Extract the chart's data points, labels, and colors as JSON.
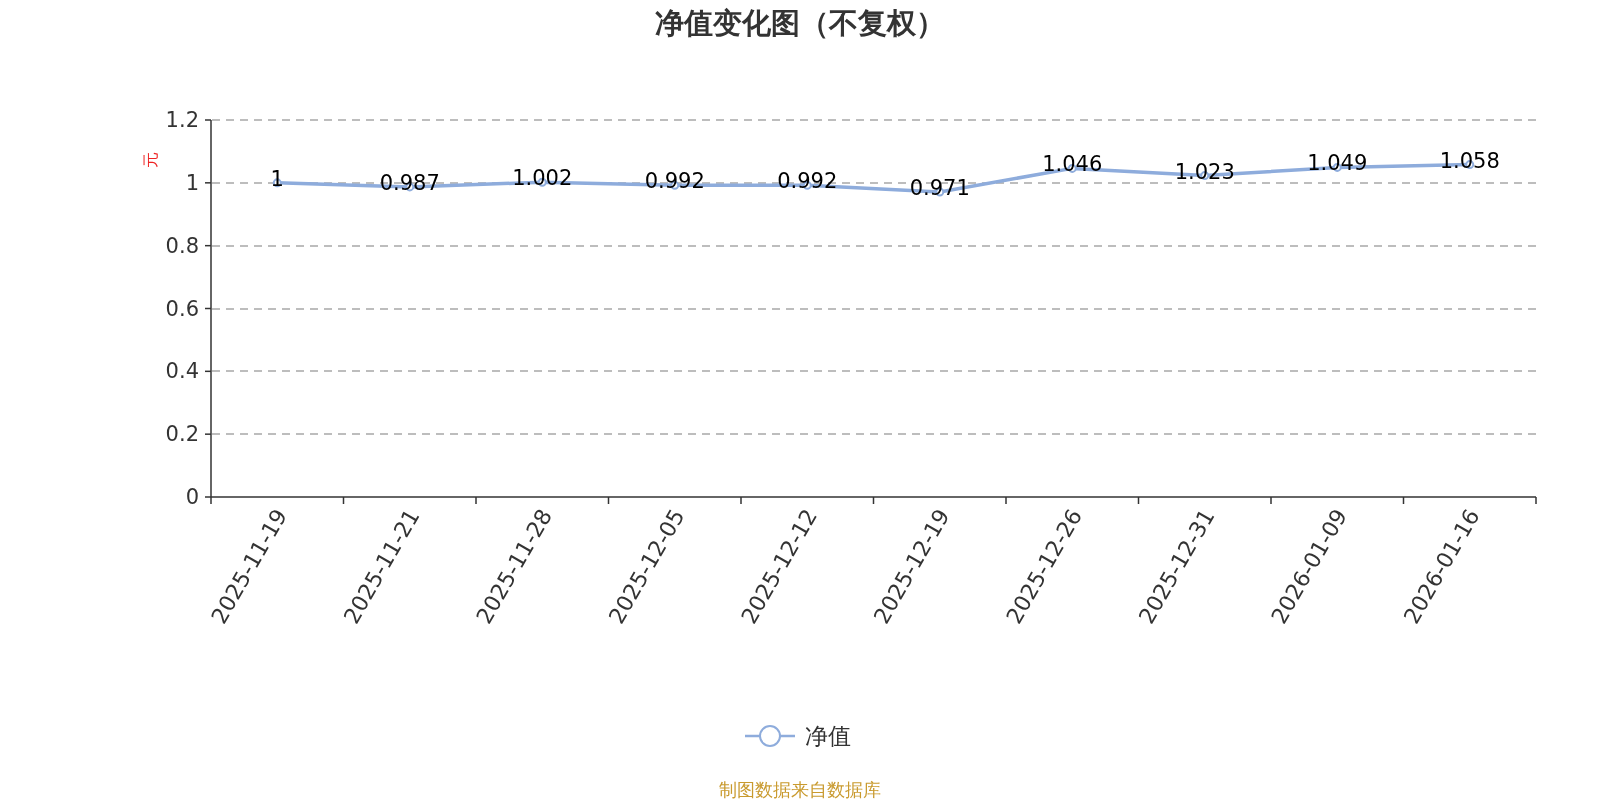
{
  "chart_data": {
    "type": "line",
    "title": "净值变化图（不复权）",
    "ylabel": "元",
    "categories": [
      "2025-11-19",
      "2025-11-21",
      "2025-11-28",
      "2025-12-05",
      "2025-12-12",
      "2025-12-19",
      "2025-12-26",
      "2025-12-31",
      "2026-01-09",
      "2026-01-16"
    ],
    "series": [
      {
        "name": "净值",
        "color": "#8eacdc",
        "values": [
          1,
          0.987,
          1.002,
          0.992,
          0.992,
          0.971,
          1.046,
          1.023,
          1.049,
          1.058
        ]
      }
    ],
    "ylim": [
      0,
      1.2
    ],
    "yticks": [
      0,
      0.2,
      0.4,
      0.6,
      0.8,
      1,
      1.2
    ],
    "grid": "y",
    "legend": "bottom",
    "marker": "circle",
    "line_style": "solid",
    "data_labels": true,
    "annotations": [
      "制图数据来自数据库"
    ]
  }
}
